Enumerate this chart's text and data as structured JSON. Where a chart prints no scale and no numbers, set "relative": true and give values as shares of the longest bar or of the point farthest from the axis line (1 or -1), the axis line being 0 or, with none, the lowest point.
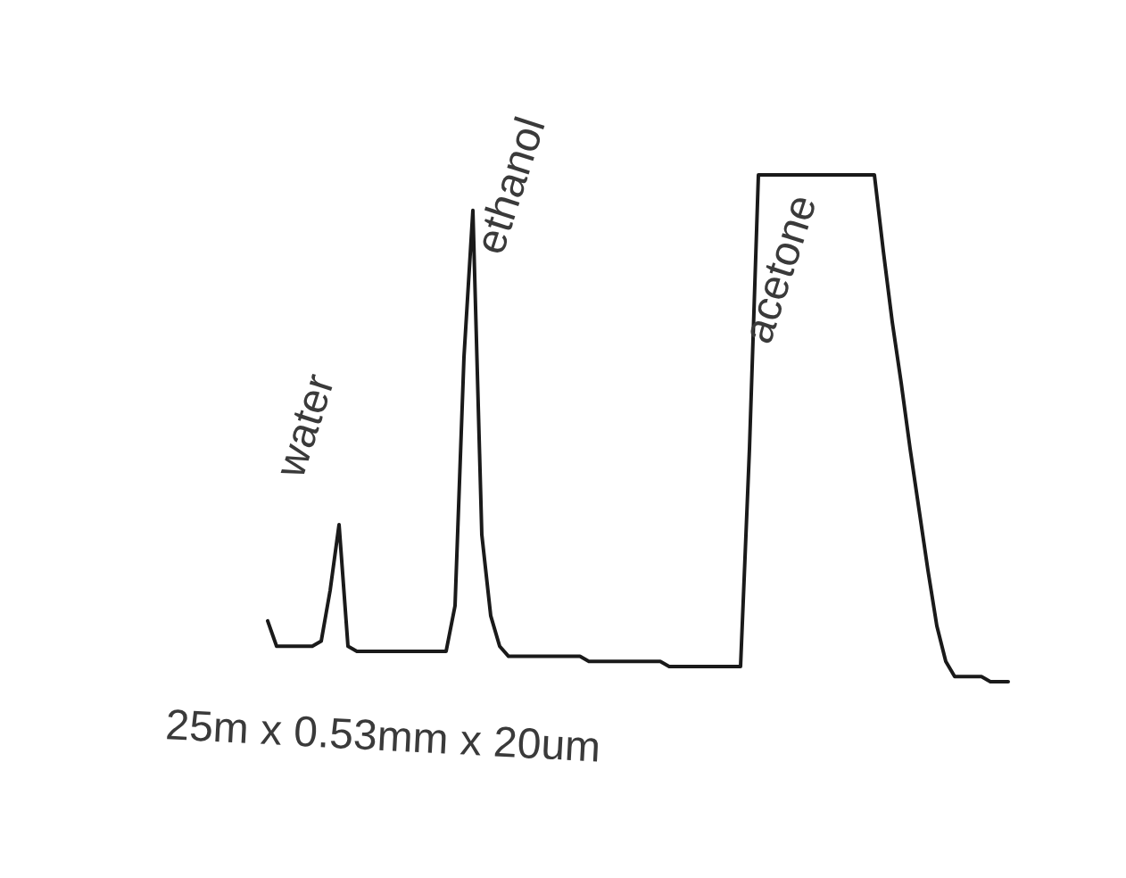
{
  "chart_data": {
    "type": "line",
    "relative": true,
    "color": "#1a1a1a",
    "marker": "none",
    "line_style": "solid",
    "grid": false,
    "legend": false,
    "tick_labels": false,
    "categories": [
      null,
      null,
      null,
      null,
      null,
      null,
      null,
      null,
      null,
      null,
      null,
      null,
      null,
      null,
      null,
      null,
      null,
      null,
      null,
      null,
      null,
      null,
      null,
      null,
      null,
      null,
      null,
      null,
      null,
      null,
      null,
      null,
      null,
      null,
      null,
      null,
      null,
      null,
      null,
      null,
      null,
      null,
      null,
      null,
      null,
      null,
      null,
      null,
      null,
      null,
      null,
      null,
      null,
      null,
      null,
      null,
      null,
      null,
      null,
      null,
      null,
      null,
      null,
      null,
      null,
      null,
      null,
      null,
      null,
      null,
      null,
      null,
      null,
      null,
      null,
      null,
      null,
      null,
      null,
      null,
      null,
      null,
      null,
      null
    ],
    "values": [
      0.12,
      0.07,
      0.07,
      0.07,
      0.07,
      0.07,
      0.08,
      0.18,
      0.31,
      0.07,
      0.06,
      0.06,
      0.06,
      0.06,
      0.06,
      0.06,
      0.06,
      0.06,
      0.06,
      0.06,
      0.06,
      0.15,
      0.64,
      0.93,
      0.29,
      0.13,
      0.07,
      0.05,
      0.05,
      0.05,
      0.05,
      0.05,
      0.05,
      0.05,
      0.05,
      0.05,
      0.04,
      0.04,
      0.04,
      0.04,
      0.04,
      0.04,
      0.04,
      0.04,
      0.04,
      0.03,
      0.03,
      0.03,
      0.03,
      0.03,
      0.03,
      0.03,
      0.03,
      0.03,
      0.46,
      1,
      1,
      1,
      1,
      1,
      1,
      1,
      1,
      1,
      1,
      1,
      1,
      1,
      1,
      0.85,
      0.71,
      0.59,
      0.46,
      0.34,
      0.22,
      0.11,
      0.04,
      0.01,
      0.01,
      0.01,
      0.01,
      0,
      0,
      0
    ],
    "annotations": [
      "water",
      "ethanol",
      "acetone",
      "25m x 0.53mm x 20um"
    ]
  }
}
